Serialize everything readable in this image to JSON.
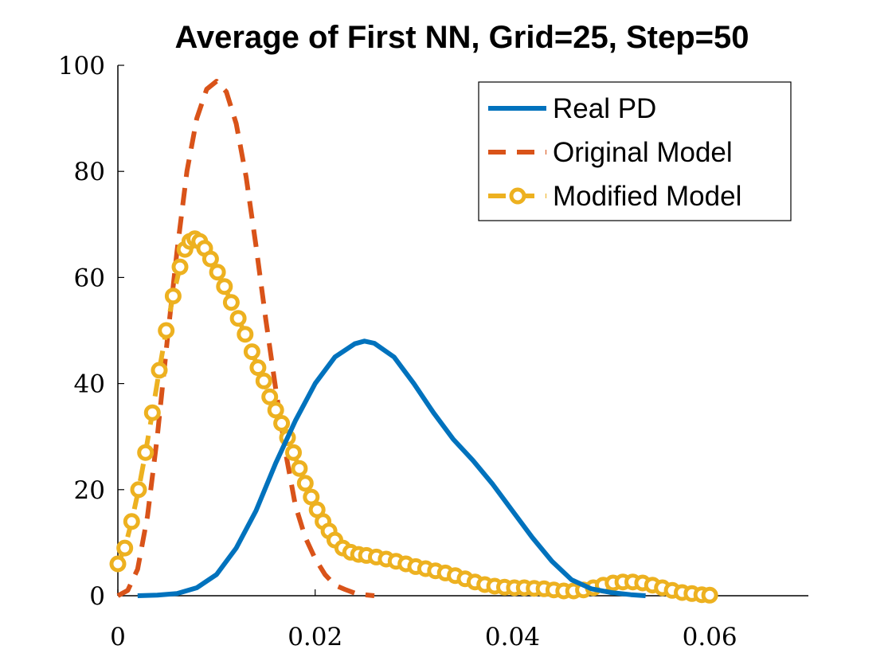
{
  "chart_data": {
    "type": "line",
    "title": "Average of First NN, Grid=25, Step=50",
    "xlabel": "",
    "ylabel": "",
    "xlim": [
      0,
      0.07
    ],
    "ylim": [
      0,
      100
    ],
    "x_ticks": [
      {
        "value": 0,
        "label": "0"
      },
      {
        "value": 0.02,
        "label": "0.02"
      },
      {
        "value": 0.04,
        "label": "0.04"
      },
      {
        "value": 0.06,
        "label": "0.06"
      }
    ],
    "y_ticks": [
      {
        "value": 0,
        "label": "0"
      },
      {
        "value": 20,
        "label": "20"
      },
      {
        "value": 40,
        "label": "40"
      },
      {
        "value": 60,
        "label": "60"
      },
      {
        "value": 80,
        "label": "80"
      },
      {
        "value": 100,
        "label": "100"
      }
    ],
    "grid": false,
    "legend_position": "top-right",
    "series": [
      {
        "name": "Real PD",
        "color": "#0072BD",
        "style": "solid",
        "marker": "none",
        "x": [
          0.002,
          0.004,
          0.006,
          0.008,
          0.01,
          0.012,
          0.014,
          0.016,
          0.018,
          0.02,
          0.022,
          0.024,
          0.025,
          0.026,
          0.028,
          0.03,
          0.032,
          0.034,
          0.036,
          0.038,
          0.04,
          0.042,
          0.044,
          0.046,
          0.048,
          0.05,
          0.052,
          0.0535
        ],
        "y": [
          0,
          0.1,
          0.4,
          1.5,
          4,
          9,
          16,
          25,
          33,
          40,
          45,
          47.5,
          48,
          47.6,
          45,
          40,
          34.5,
          29.5,
          25.5,
          21,
          16,
          11,
          6.5,
          3,
          1.3,
          0.6,
          0.2,
          0
        ]
      },
      {
        "name": "Original Model",
        "color": "#D95319",
        "style": "dashed",
        "marker": "none",
        "x": [
          0,
          0.001,
          0.002,
          0.003,
          0.004,
          0.005,
          0.006,
          0.007,
          0.008,
          0.009,
          0.01,
          0.011,
          0.012,
          0.013,
          0.014,
          0.015,
          0.016,
          0.017,
          0.018,
          0.019,
          0.02,
          0.021,
          0.022,
          0.023,
          0.024,
          0.025,
          0.026
        ],
        "y": [
          0,
          1,
          5,
          15,
          30,
          48,
          65,
          80,
          90,
          95.5,
          97,
          95,
          89,
          79,
          66,
          52,
          39,
          27,
          17,
          11,
          7,
          4,
          2,
          1.2,
          0.5,
          0.2,
          0
        ]
      },
      {
        "name": "Modified Model",
        "color": "#EDB120",
        "style": "dashed",
        "marker": "circle",
        "x": [
          0,
          0.0007,
          0.0014,
          0.0021,
          0.0028,
          0.0035,
          0.0042,
          0.0049,
          0.0056,
          0.0063,
          0.0068,
          0.0073,
          0.0078,
          0.0083,
          0.0088,
          0.0094,
          0.0101,
          0.0108,
          0.0115,
          0.0122,
          0.0129,
          0.0136,
          0.0142,
          0.0148,
          0.0154,
          0.016,
          0.0166,
          0.0172,
          0.0178,
          0.0184,
          0.019,
          0.0196,
          0.0202,
          0.0208,
          0.0214,
          0.022,
          0.0228,
          0.0236,
          0.0244,
          0.0252,
          0.0262,
          0.0272,
          0.0282,
          0.0292,
          0.0302,
          0.0312,
          0.0322,
          0.0332,
          0.0342,
          0.0352,
          0.0362,
          0.0372,
          0.0382,
          0.0392,
          0.0402,
          0.0412,
          0.0422,
          0.0432,
          0.0442,
          0.0452,
          0.0462,
          0.0472,
          0.0482,
          0.0492,
          0.0502,
          0.0512,
          0.0522,
          0.0532,
          0.0542,
          0.0552,
          0.0562,
          0.0572,
          0.0582,
          0.0592,
          0.06
        ],
        "y": [
          6,
          9,
          14,
          20,
          27,
          34.5,
          42.5,
          50,
          56.5,
          62,
          65.3,
          66.8,
          67.3,
          66.8,
          65.5,
          63.5,
          61,
          58.3,
          55.3,
          52.3,
          49.3,
          46,
          43,
          40.5,
          37.5,
          35,
          32.5,
          29.8,
          27,
          24,
          21.2,
          18.6,
          16.2,
          14,
          12.2,
          10.5,
          9,
          8.2,
          7.8,
          7.6,
          7.3,
          6.9,
          6.5,
          6,
          5.5,
          5.1,
          4.7,
          4.3,
          3.8,
          3.2,
          2.6,
          2.1,
          1.8,
          1.6,
          1.5,
          1.5,
          1.4,
          1.3,
          1.1,
          0.9,
          0.9,
          1.1,
          1.5,
          2,
          2.4,
          2.6,
          2.6,
          2.4,
          2,
          1.5,
          1,
          0.6,
          0.4,
          0.2,
          0.1
        ]
      }
    ]
  }
}
